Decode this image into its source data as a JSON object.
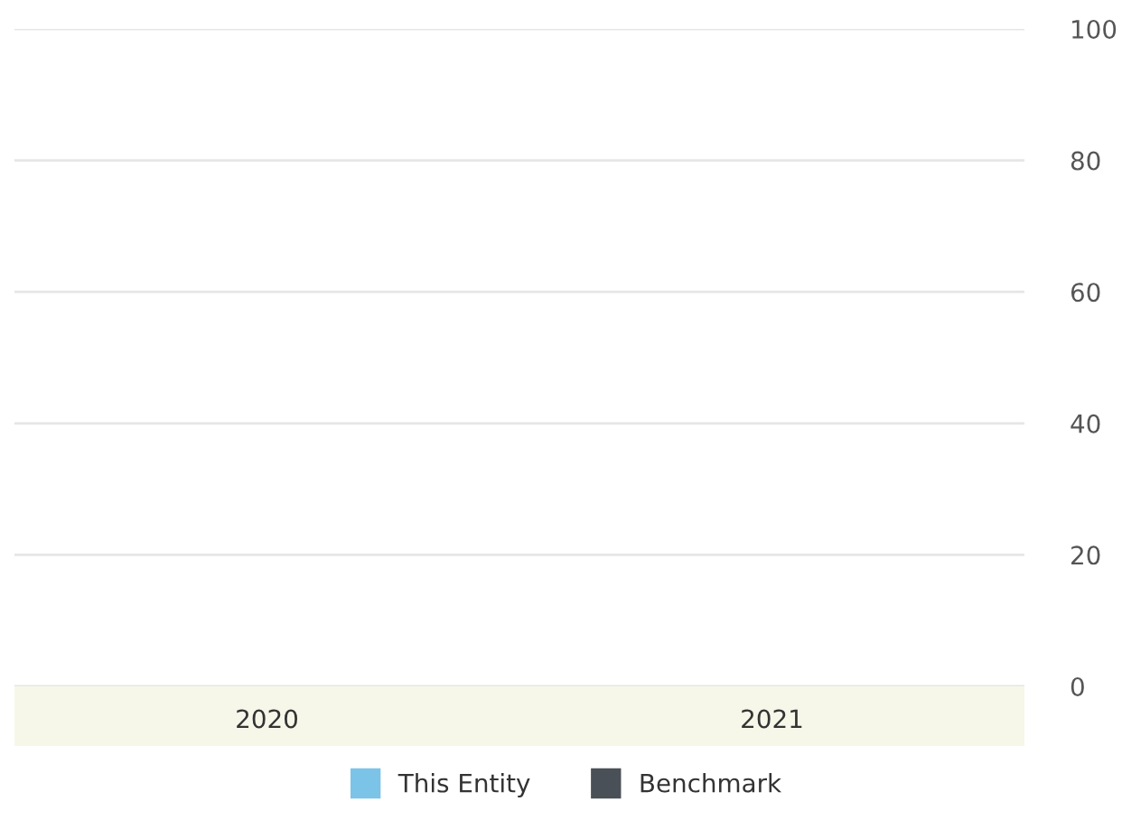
{
  "chart_data": {
    "type": "bar",
    "categories": [
      "2020",
      "2021"
    ],
    "series": [
      {
        "name": "This Entity",
        "color": "#7cc3e8",
        "values": [
          null,
          null
        ]
      },
      {
        "name": "Benchmark",
        "color": "#4a5057",
        "values": [
          null,
          null
        ]
      }
    ],
    "ylim": [
      0,
      100
    ],
    "yticks": [
      0,
      20,
      40,
      60,
      80,
      100
    ],
    "grid": "y",
    "legend": "bottom"
  }
}
